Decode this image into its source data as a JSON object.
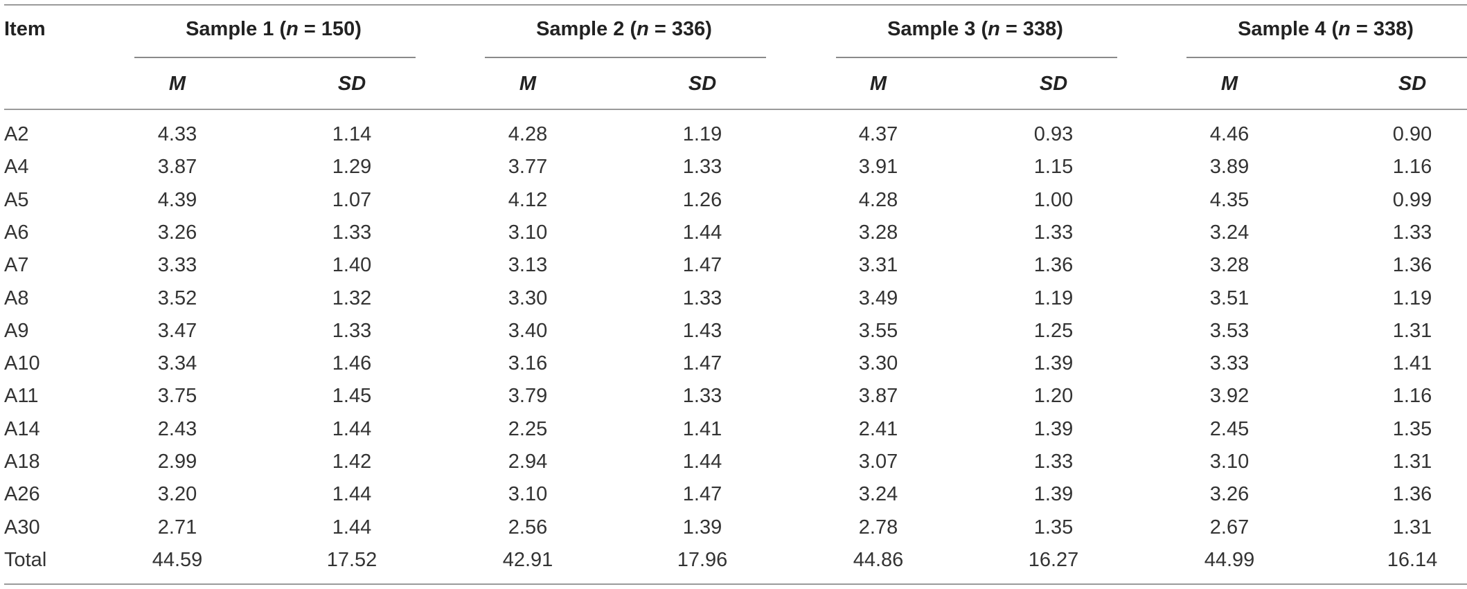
{
  "table": {
    "item_header": "Item",
    "groups": [
      {
        "prefix": "Sample 1 (",
        "n_symbol": "n",
        "suffix": " = 150)"
      },
      {
        "prefix": "Sample 2 (",
        "n_symbol": "n",
        "suffix": " = 336)"
      },
      {
        "prefix": "Sample 3 (",
        "n_symbol": "n",
        "suffix": " = 338)"
      },
      {
        "prefix": "Sample 4 (",
        "n_symbol": "n",
        "suffix": " = 338)"
      }
    ],
    "subheaders": [
      "M",
      "SD",
      "M",
      "SD",
      "M",
      "SD",
      "M",
      "SD"
    ],
    "rows": [
      {
        "item": "A2",
        "values": [
          "4.33",
          "1.14",
          "4.28",
          "1.19",
          "4.37",
          "0.93",
          "4.46",
          "0.90"
        ]
      },
      {
        "item": "A4",
        "values": [
          "3.87",
          "1.29",
          "3.77",
          "1.33",
          "3.91",
          "1.15",
          "3.89",
          "1.16"
        ]
      },
      {
        "item": "A5",
        "values": [
          "4.39",
          "1.07",
          "4.12",
          "1.26",
          "4.28",
          "1.00",
          "4.35",
          "0.99"
        ]
      },
      {
        "item": "A6",
        "values": [
          "3.26",
          "1.33",
          "3.10",
          "1.44",
          "3.28",
          "1.33",
          "3.24",
          "1.33"
        ]
      },
      {
        "item": "A7",
        "values": [
          "3.33",
          "1.40",
          "3.13",
          "1.47",
          "3.31",
          "1.36",
          "3.28",
          "1.36"
        ]
      },
      {
        "item": "A8",
        "values": [
          "3.52",
          "1.32",
          "3.30",
          "1.33",
          "3.49",
          "1.19",
          "3.51",
          "1.19"
        ]
      },
      {
        "item": "A9",
        "values": [
          "3.47",
          "1.33",
          "3.40",
          "1.43",
          "3.55",
          "1.25",
          "3.53",
          "1.31"
        ]
      },
      {
        "item": "A10",
        "values": [
          "3.34",
          "1.46",
          "3.16",
          "1.47",
          "3.30",
          "1.39",
          "3.33",
          "1.41"
        ]
      },
      {
        "item": "A11",
        "values": [
          "3.75",
          "1.45",
          "3.79",
          "1.33",
          "3.87",
          "1.20",
          "3.92",
          "1.16"
        ]
      },
      {
        "item": "A14",
        "values": [
          "2.43",
          "1.44",
          "2.25",
          "1.41",
          "2.41",
          "1.39",
          "2.45",
          "1.35"
        ]
      },
      {
        "item": "A18",
        "values": [
          "2.99",
          "1.42",
          "2.94",
          "1.44",
          "3.07",
          "1.33",
          "3.10",
          "1.31"
        ]
      },
      {
        "item": "A26",
        "values": [
          "3.20",
          "1.44",
          "3.10",
          "1.47",
          "3.24",
          "1.39",
          "3.26",
          "1.36"
        ]
      },
      {
        "item": "A30",
        "values": [
          "2.71",
          "1.44",
          "2.56",
          "1.39",
          "2.78",
          "1.35",
          "2.67",
          "1.31"
        ]
      },
      {
        "item": "Total",
        "values": [
          "44.59",
          "17.52",
          "42.91",
          "17.96",
          "44.86",
          "16.27",
          "44.99",
          "16.14"
        ]
      }
    ]
  }
}
